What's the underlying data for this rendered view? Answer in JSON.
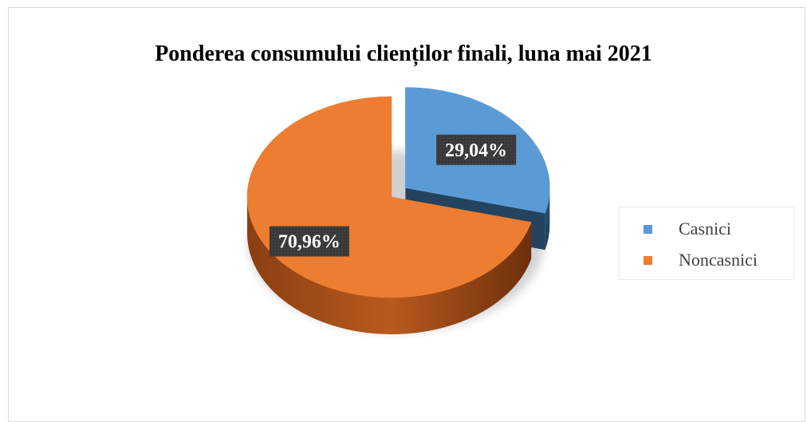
{
  "chart_data": {
    "type": "pie",
    "title": "Ponderea consumului clienților finali, luna mai 2021",
    "categories": [
      "Casnici",
      "Noncasnici"
    ],
    "values": [
      29.04,
      70.96
    ],
    "data_labels": [
      "29,04%",
      "70,96%"
    ],
    "colors": [
      "#5b9bd5",
      "#ed7d31"
    ],
    "exploded": "Casnici",
    "style": "3d",
    "legend_position": "right"
  }
}
